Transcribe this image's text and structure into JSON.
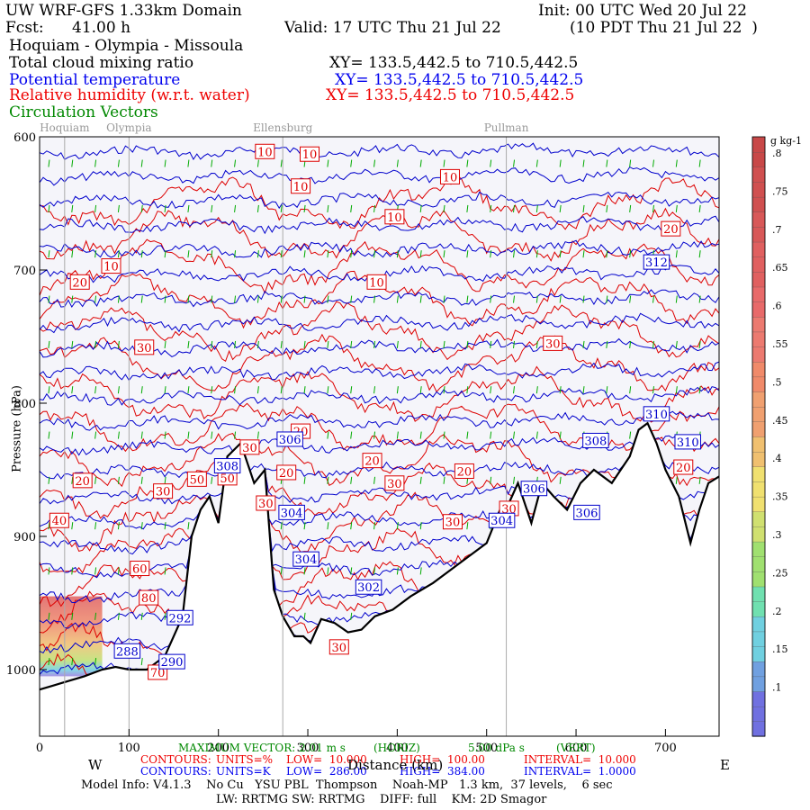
{
  "header": {
    "domain": "UW WRF-GFS 1.33km Domain",
    "init": "Init: 00 UTC Wed 20 Jul 22",
    "fcst_label": "Fcst:",
    "fcst_value": "41.00 h",
    "valid": "Valid: 17 UTC Thu 21 Jul 22",
    "valid_local": "(10 PDT Thu 21 Jul 22  )",
    "route": "Hoquiam - Olympia - Missoula"
  },
  "fields": [
    {
      "label": "Total cloud mixing ratio",
      "xy": "XY= 133.5,442.5 to 710.5,442.5",
      "color": "#000000"
    },
    {
      "label": "Potential temperature",
      "xy": "XY= 133.5,442.5 to 710.5,442.5",
      "color": "#0000ee"
    },
    {
      "label": "Relative humidity (w.r.t. water)",
      "xy": "XY= 133.5,442.5 to 710.5,442.5",
      "color": "#ee0000"
    },
    {
      "label": "Circulation Vectors",
      "xy": "",
      "color": "#008800"
    }
  ],
  "chart_data": {
    "type": "contour-cross-section",
    "xlabel": "Distance (km)",
    "ylabel": "Pressure (hPa)",
    "xlim": [
      0,
      760
    ],
    "ylim": [
      1050,
      600
    ],
    "x_ticks": [
      0,
      100,
      200,
      300,
      400,
      500,
      600,
      700
    ],
    "x_tick_labels": [
      "0",
      "100",
      "200",
      "300",
      "400",
      "500",
      "600",
      "700"
    ],
    "y_ticks": [
      600,
      700,
      800,
      900,
      1000
    ],
    "y_tick_labels": [
      "600",
      "700",
      "800",
      "900",
      "1000"
    ],
    "west_label": "W",
    "east_label": "E",
    "locations": [
      {
        "name": "Hoquiam",
        "x": 28
      },
      {
        "name": "Olympia",
        "x": 100
      },
      {
        "name": "Ellensburg",
        "x": 272
      },
      {
        "name": "Pullman",
        "x": 522
      }
    ],
    "terrain_surface": [
      [
        0,
        1015
      ],
      [
        15,
        1012
      ],
      [
        25,
        1010
      ],
      [
        50,
        1005
      ],
      [
        70,
        1000
      ],
      [
        85,
        998
      ],
      [
        100,
        1000
      ],
      [
        120,
        1000
      ],
      [
        140,
        990
      ],
      [
        160,
        960
      ],
      [
        170,
        900
      ],
      [
        180,
        880
      ],
      [
        190,
        870
      ],
      [
        200,
        890
      ],
      [
        210,
        840
      ],
      [
        225,
        830
      ],
      [
        240,
        860
      ],
      [
        252,
        850
      ],
      [
        262,
        940
      ],
      [
        272,
        960
      ],
      [
        285,
        975
      ],
      [
        295,
        975
      ],
      [
        303,
        980
      ],
      [
        315,
        962
      ],
      [
        330,
        965
      ],
      [
        345,
        972
      ],
      [
        360,
        970
      ],
      [
        375,
        960
      ],
      [
        395,
        955
      ],
      [
        415,
        945
      ],
      [
        440,
        935
      ],
      [
        460,
        925
      ],
      [
        480,
        915
      ],
      [
        500,
        905
      ],
      [
        515,
        880
      ],
      [
        525,
        875
      ],
      [
        535,
        860
      ],
      [
        550,
        890
      ],
      [
        562,
        860
      ],
      [
        575,
        870
      ],
      [
        590,
        880
      ],
      [
        605,
        860
      ],
      [
        620,
        850
      ],
      [
        640,
        860
      ],
      [
        660,
        840
      ],
      [
        670,
        820
      ],
      [
        680,
        815
      ],
      [
        690,
        830
      ],
      [
        700,
        850
      ],
      [
        715,
        870
      ],
      [
        728,
        905
      ],
      [
        738,
        880
      ],
      [
        748,
        860
      ],
      [
        760,
        855
      ]
    ],
    "theta_contours": {
      "units": "K",
      "low": 286,
      "high": 384,
      "interval": 1
    },
    "theta_labels": [
      {
        "text": "312",
        "x": 690,
        "p": 694
      },
      {
        "text": "310",
        "x": 690,
        "p": 808
      },
      {
        "text": "310",
        "x": 725,
        "p": 829
      },
      {
        "text": "308",
        "x": 622,
        "p": 828
      },
      {
        "text": "308",
        "x": 210,
        "p": 847
      },
      {
        "text": "306",
        "x": 280,
        "p": 827
      },
      {
        "text": "306",
        "x": 553,
        "p": 864
      },
      {
        "text": "306",
        "x": 612,
        "p": 882
      },
      {
        "text": "304",
        "x": 282,
        "p": 882
      },
      {
        "text": "304",
        "x": 517,
        "p": 888
      },
      {
        "text": "304",
        "x": 298,
        "p": 917
      },
      {
        "text": "302",
        "x": 368,
        "p": 938
      },
      {
        "text": "292",
        "x": 157,
        "p": 961
      },
      {
        "text": "288",
        "x": 98,
        "p": 986
      },
      {
        "text": "290",
        "x": 148,
        "p": 994
      }
    ],
    "rh_contours": {
      "units": "%",
      "low": 10,
      "high": 100,
      "interval": 10
    },
    "rh_labels": [
      {
        "text": "10",
        "x": 252,
        "p": 611
      },
      {
        "text": "10",
        "x": 302,
        "p": 613
      },
      {
        "text": "10",
        "x": 292,
        "p": 637
      },
      {
        "text": "10",
        "x": 459,
        "p": 630
      },
      {
        "text": "10",
        "x": 397,
        "p": 660
      },
      {
        "text": "10",
        "x": 377,
        "p": 709
      },
      {
        "text": "10",
        "x": 80,
        "p": 697
      },
      {
        "text": "20",
        "x": 45,
        "p": 709
      },
      {
        "text": "20",
        "x": 706,
        "p": 669
      },
      {
        "text": "30",
        "x": 117,
        "p": 758
      },
      {
        "text": "30",
        "x": 574,
        "p": 755
      },
      {
        "text": "20",
        "x": 292,
        "p": 821
      },
      {
        "text": "30",
        "x": 235,
        "p": 833
      },
      {
        "text": "20",
        "x": 372,
        "p": 843
      },
      {
        "text": "20",
        "x": 475,
        "p": 851
      },
      {
        "text": "20",
        "x": 276,
        "p": 852
      },
      {
        "text": "20",
        "x": 720,
        "p": 848
      },
      {
        "text": "20",
        "x": 48,
        "p": 858
      },
      {
        "text": "30",
        "x": 138,
        "p": 866
      },
      {
        "text": "50",
        "x": 176,
        "p": 857
      },
      {
        "text": "30",
        "x": 397,
        "p": 860
      },
      {
        "text": "30",
        "x": 253,
        "p": 875
      },
      {
        "text": "30",
        "x": 525,
        "p": 879
      },
      {
        "text": "30",
        "x": 462,
        "p": 889
      },
      {
        "text": "40",
        "x": 22,
        "p": 888
      },
      {
        "text": "60",
        "x": 112,
        "p": 924
      },
      {
        "text": "80",
        "x": 122,
        "p": 946
      },
      {
        "text": "30",
        "x": 335,
        "p": 983
      },
      {
        "text": "70",
        "x": 132,
        "p": 1002
      },
      {
        "text": "50",
        "x": 210,
        "p": 856
      }
    ],
    "cloud_mixing_ratio": {
      "units": "g kg-1",
      "colorbar_ticks": [
        ".1",
        ".15",
        ".2",
        ".25",
        ".3",
        ".35",
        ".4",
        ".45",
        ".5",
        ".55",
        ".6",
        ".65",
        ".7",
        ".75",
        ".8"
      ],
      "cloud_region_x": [
        0,
        70
      ],
      "cloud_region_p": [
        945,
        1005
      ]
    },
    "maximum_vector": "MAXIMUM VECTOR: 2.01 m s",
    "vector_h_label": "(HORIZ)",
    "vector_w_value": "5.00 dPa s",
    "vector_w_label": "(VERT)",
    "rh_contour_info": {
      "label": "CONTOURS:",
      "units": "UNITS=%",
      "low": "LOW=  10.000",
      "high": "HIGH=  100.00",
      "interval": "INTERVAL=  10.000"
    },
    "theta_contour_info": {
      "label": "CONTOURS:",
      "units": "UNITS=K",
      "low": "LOW=  286.00",
      "high": "HIGH=  384.00",
      "interval": "INTERVAL=  1.0000"
    }
  },
  "footer": {
    "model_info": "Model Info: V4.1.3    No Cu   YSU PBL  Thompson    Noah-MP   1.3 km,  37 levels,    6 sec",
    "lw_sw": "LW: RRTMG SW: RRTMG    DIFF: full    KM: 2D Smagor"
  },
  "colors": {
    "theta": "#0000cc",
    "rh": "#dd0000",
    "vectors": "#00aa00",
    "terrain": "#000000",
    "plot_bg": "#f5f5fa"
  }
}
